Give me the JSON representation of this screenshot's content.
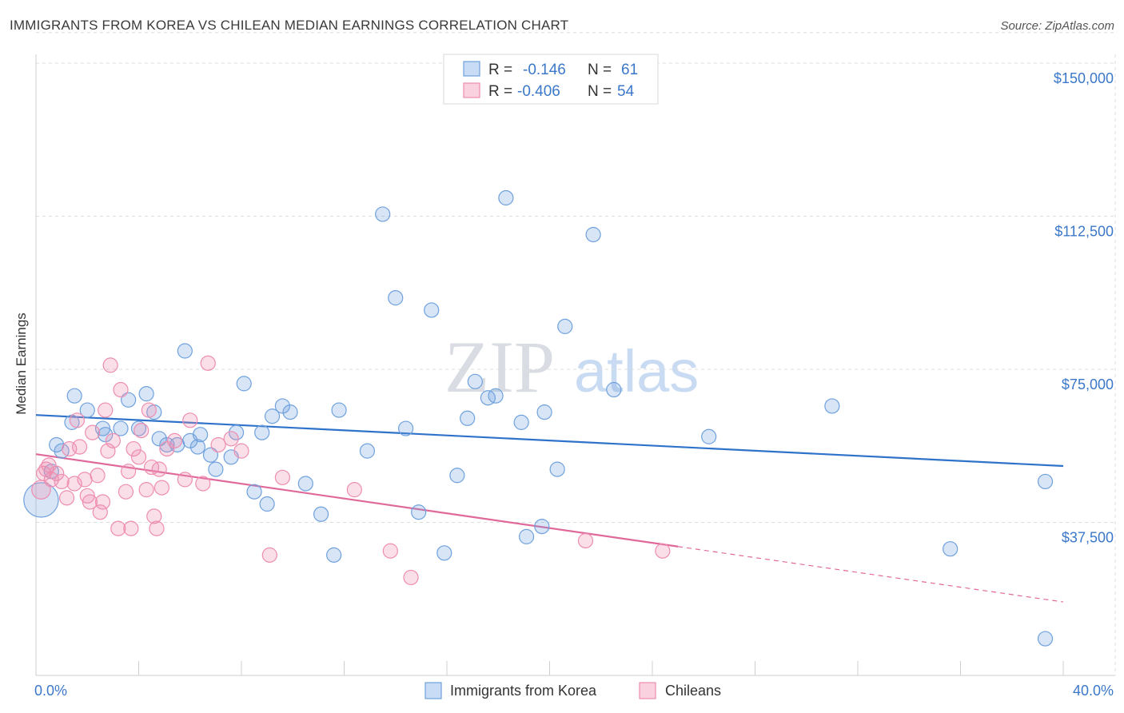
{
  "header": {
    "title": "IMMIGRANTS FROM KOREA VS CHILEAN MEDIAN EARNINGS CORRELATION CHART",
    "source": "Source: ZipAtlas.com"
  },
  "watermark": {
    "zip": "ZIP",
    "atlas": "atlas"
  },
  "legend": {
    "r_label": "R =",
    "n_label": "N =",
    "rows": [
      {
        "r": "-0.146",
        "n": "61",
        "color": "#6fa1dd"
      },
      {
        "r": "-0.406",
        "n": "54",
        "color": "#ee8db0"
      }
    ]
  },
  "chart_data": {
    "type": "scatter",
    "title": "IMMIGRANTS FROM KOREA VS CHILEAN MEDIAN EARNINGS CORRELATION CHART",
    "xlabel": "",
    "ylabel": "Median Earnings",
    "xlim": [
      0,
      40
    ],
    "ylim": [
      0,
      157500
    ],
    "x_tick_labels": [
      "0.0%",
      "40.0%"
    ],
    "y_ticks": [
      37500,
      75000,
      112500,
      150000
    ],
    "y_tick_labels": [
      "$37,500",
      "$75,000",
      "$112,500",
      "$150,000"
    ],
    "grid": true,
    "legend_position": "top-center",
    "series": [
      {
        "name": "Immigrants from Korea",
        "color": "#6fa1dd",
        "trend": {
          "x": [
            0,
            40
          ],
          "y": [
            63800,
            51300
          ],
          "dashed_from": null
        },
        "points": [
          [
            0.2,
            43000,
            2.4
          ],
          [
            0.6,
            50000,
            1
          ],
          [
            0.8,
            56500,
            1
          ],
          [
            1.0,
            55000,
            1
          ],
          [
            1.4,
            62000,
            1
          ],
          [
            1.5,
            68500,
            1
          ],
          [
            2.0,
            65000,
            1
          ],
          [
            2.6,
            60500,
            1
          ],
          [
            2.7,
            59000,
            1
          ],
          [
            3.3,
            60500,
            1
          ],
          [
            3.6,
            67500,
            1
          ],
          [
            4.0,
            60500,
            1
          ],
          [
            4.3,
            69000,
            1
          ],
          [
            4.6,
            64500,
            1
          ],
          [
            4.8,
            58000,
            1
          ],
          [
            5.1,
            56500,
            1
          ],
          [
            5.5,
            56500,
            1
          ],
          [
            5.8,
            79500,
            1
          ],
          [
            6.0,
            57500,
            1
          ],
          [
            6.3,
            56000,
            1
          ],
          [
            6.8,
            54000,
            1
          ],
          [
            6.4,
            59000,
            1
          ],
          [
            7.0,
            50500,
            1
          ],
          [
            7.6,
            53500,
            1
          ],
          [
            7.8,
            59500,
            1
          ],
          [
            8.1,
            71500,
            1
          ],
          [
            8.5,
            45000,
            1
          ],
          [
            8.8,
            59500,
            1
          ],
          [
            9.0,
            42000,
            1
          ],
          [
            9.2,
            63500,
            1
          ],
          [
            9.6,
            66000,
            1
          ],
          [
            9.9,
            64500,
            1
          ],
          [
            10.5,
            47000,
            1
          ],
          [
            11.1,
            39500,
            1
          ],
          [
            11.6,
            29500,
            1
          ],
          [
            11.8,
            65000,
            1
          ],
          [
            12.9,
            55000,
            1
          ],
          [
            13.5,
            113000,
            1
          ],
          [
            14.0,
            92500,
            1
          ],
          [
            14.4,
            60500,
            1
          ],
          [
            14.9,
            40000,
            1
          ],
          [
            15.4,
            89500,
            1
          ],
          [
            15.9,
            30000,
            1
          ],
          [
            16.4,
            49000,
            1
          ],
          [
            16.8,
            63000,
            1
          ],
          [
            17.1,
            72000,
            1
          ],
          [
            17.6,
            68000,
            1
          ],
          [
            17.9,
            68500,
            1
          ],
          [
            18.3,
            117000,
            1
          ],
          [
            18.9,
            62000,
            1
          ],
          [
            19.1,
            34000,
            1
          ],
          [
            19.7,
            36500,
            1
          ],
          [
            19.8,
            64500,
            1
          ],
          [
            20.3,
            50500,
            1
          ],
          [
            20.6,
            85500,
            1
          ],
          [
            21.7,
            108000,
            1
          ],
          [
            22.5,
            70000,
            1
          ],
          [
            26.2,
            58500,
            1
          ],
          [
            31.0,
            66000,
            1
          ],
          [
            35.6,
            31000,
            1
          ],
          [
            39.3,
            47500,
            1
          ],
          [
            39.3,
            9000,
            1
          ]
        ]
      },
      {
        "name": "Chileans",
        "color": "#ee8db0",
        "trend": {
          "x": [
            0,
            40
          ],
          "y": [
            54200,
            18000
          ],
          "dashed_from": 25.0
        },
        "points": [
          [
            0.2,
            45500,
            1.3
          ],
          [
            0.3,
            49500,
            1
          ],
          [
            0.4,
            50500,
            1
          ],
          [
            0.5,
            51500,
            1
          ],
          [
            0.6,
            48000,
            1
          ],
          [
            0.8,
            49500,
            1
          ],
          [
            1.0,
            47500,
            1
          ],
          [
            1.2,
            43500,
            1
          ],
          [
            1.3,
            55500,
            1
          ],
          [
            1.5,
            47000,
            1
          ],
          [
            1.6,
            62500,
            1
          ],
          [
            1.7,
            56000,
            1
          ],
          [
            1.9,
            48000,
            1
          ],
          [
            2.0,
            44000,
            1
          ],
          [
            2.1,
            42500,
            1
          ],
          [
            2.2,
            59500,
            1
          ],
          [
            2.4,
            49000,
            1
          ],
          [
            2.5,
            40000,
            1
          ],
          [
            2.6,
            42500,
            1
          ],
          [
            2.7,
            65000,
            1
          ],
          [
            2.8,
            55000,
            1
          ],
          [
            2.9,
            76000,
            1
          ],
          [
            3.0,
            57500,
            1
          ],
          [
            3.2,
            36000,
            1
          ],
          [
            3.3,
            70000,
            1
          ],
          [
            3.5,
            45000,
            1
          ],
          [
            3.6,
            50000,
            1
          ],
          [
            3.7,
            36000,
            1
          ],
          [
            3.8,
            55500,
            1
          ],
          [
            4.0,
            53500,
            1
          ],
          [
            4.1,
            60000,
            1
          ],
          [
            4.3,
            45500,
            1
          ],
          [
            4.4,
            65000,
            1
          ],
          [
            4.5,
            51000,
            1
          ],
          [
            4.6,
            39000,
            1
          ],
          [
            4.7,
            36000,
            1
          ],
          [
            4.8,
            50500,
            1
          ],
          [
            4.9,
            46000,
            1
          ],
          [
            5.1,
            55500,
            1
          ],
          [
            5.4,
            57500,
            1
          ],
          [
            5.8,
            48000,
            1
          ],
          [
            6.0,
            62500,
            1
          ],
          [
            6.5,
            47000,
            1
          ],
          [
            6.7,
            76500,
            1
          ],
          [
            7.1,
            56500,
            1
          ],
          [
            7.6,
            58000,
            1
          ],
          [
            8.0,
            55000,
            1
          ],
          [
            9.1,
            29500,
            1
          ],
          [
            9.6,
            48500,
            1
          ],
          [
            12.4,
            45500,
            1
          ],
          [
            13.8,
            30500,
            1
          ],
          [
            14.6,
            24000,
            1
          ],
          [
            21.4,
            33000,
            1
          ],
          [
            24.4,
            30500,
            1
          ]
        ]
      }
    ]
  },
  "bottom_legend": {
    "items": [
      "Immigrants from Korea",
      "Chileans"
    ]
  }
}
